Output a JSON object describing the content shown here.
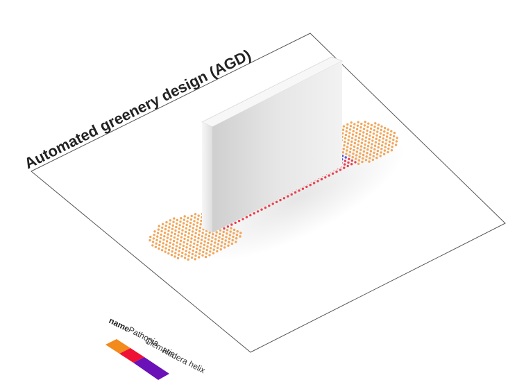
{
  "title": "Automated greenery design (AGD)",
  "legend": {
    "title": "name",
    "items": [
      {
        "label": "Pathopia",
        "color": "#f28a1c"
      },
      {
        "label": "Clematis",
        "color": "#ee1133"
      },
      {
        "label": "Hedera helix",
        "color": "#6a12b8"
      }
    ]
  },
  "colors": {
    "plane_fill": "#ffffff",
    "plane_stroke": "#444444",
    "wall_front": "#dcdcdc",
    "wall_side": "#ededed",
    "wall_top": "#f6f6f6",
    "dot_orange": "#f2a65a",
    "dot_red": "#e8404e",
    "dot_blue": "#5a55dd"
  }
}
